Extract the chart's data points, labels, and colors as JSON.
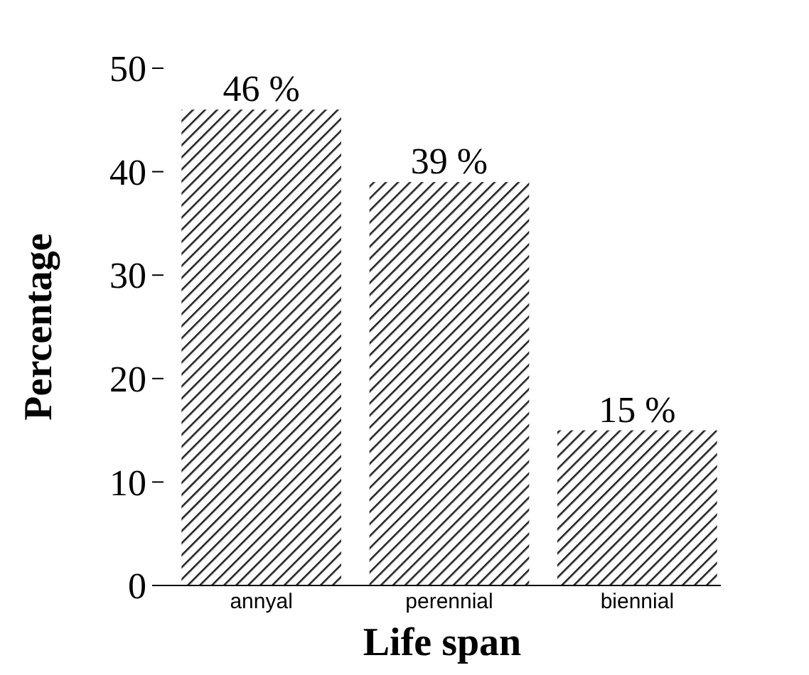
{
  "chart_data": {
    "type": "bar",
    "xlabel": "Life span",
    "ylabel": "Percentage",
    "categories": [
      "annyal",
      "perennial",
      "biennial"
    ],
    "values": [
      46,
      39,
      15
    ],
    "value_labels": [
      "46 %",
      "39 %",
      "15 %"
    ],
    "color": "#222222",
    "ylim": [
      0,
      50
    ],
    "yticks": [
      0,
      10,
      20,
      30,
      40,
      50
    ],
    "grid": false
  }
}
